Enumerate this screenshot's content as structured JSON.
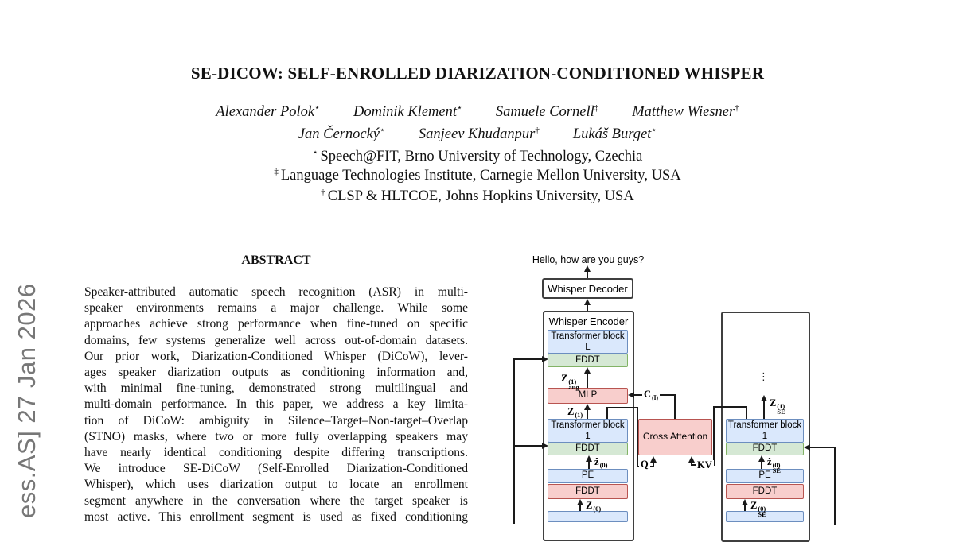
{
  "arxiv_banner": {
    "text": "ess.AS]  27 Jan 2026"
  },
  "header": {
    "title": "SE-DICOW: SELF-ENROLLED DIARIZATION-CONDITIONED WHISPER",
    "author_line1": [
      {
        "name": "Alexander Polok",
        "mark": "⋆"
      },
      {
        "name": "Dominik Klement",
        "mark": "⋆"
      },
      {
        "name": "Samuele Cornell",
        "mark": "‡"
      },
      {
        "name": "Matthew Wiesner",
        "mark": "†"
      }
    ],
    "author_line2": [
      {
        "name": "Jan Černocký",
        "mark": "⋆"
      },
      {
        "name": "Sanjeev Khudanpur",
        "mark": "†"
      },
      {
        "name": "Lukáš Burget",
        "mark": "⋆"
      }
    ],
    "affiliations": [
      {
        "mark": "⋆",
        "text": "Speech@FIT, Brno University of Technology, Czechia"
      },
      {
        "mark": "‡",
        "text": "Language Technologies Institute, Carnegie Mellon University, USA"
      },
      {
        "mark": "†",
        "text": "CLSP & HLTCOE, Johns Hopkins University, USA"
      }
    ]
  },
  "abstract": {
    "heading": "ABSTRACT",
    "lines": [
      "Speaker-attributed automatic speech recognition (ASR) in multi-",
      "speaker environments remains a major challenge. While some",
      "approaches achieve strong performance when fine-tuned on specific",
      "domains, few systems generalize well across out-of-domain datasets.",
      "Our prior work, Diarization-Conditioned Whisper (DiCoW), lever-",
      "ages speaker diarization outputs as conditioning information and,",
      "with minimal fine-tuning, demonstrated strong multilingual and",
      "multi-domain performance. In this paper, we address a key limita-",
      "tion of DiCoW: ambiguity in Silence–Target–Non-target–Overlap",
      "(STNO) masks, where two or more fully overlapping speakers may",
      "have nearly identical conditioning despite differing transcriptions.",
      "We introduce SE-DiCoW (Self-Enrolled Diarization-Conditioned",
      "Whisper), which uses diarization output to locate an enrollment",
      "segment anywhere in the conversation where the target speaker is",
      "most active. This enrollment segment is used as fixed conditioning"
    ]
  },
  "figure": {
    "output_text": "Hello, how are you guys?",
    "decoder_label": "Whisper Decoder",
    "encoder_label": "Whisper Encoder",
    "boxes": {
      "transformer_block": "Transformer block",
      "block_L": "L",
      "block_1": "1",
      "fddt": "FDDT",
      "mlp": "MLP",
      "pe": "PE",
      "cross_attention": "Cross Attention"
    },
    "labels": {
      "z_aug_1": {
        "base": "Z",
        "sub": "aug",
        "sup": "(1)"
      },
      "c_l": {
        "base": "C",
        "sup": "(l)"
      },
      "z_1": {
        "base": "Z",
        "sup": "(1)"
      },
      "z_hat_0": {
        "base": "ẑ",
        "sup": "(0)"
      },
      "z_0": {
        "base": "Z",
        "sup": "(0)"
      },
      "z_se_1": {
        "base": "Z",
        "sub": "SE",
        "sup": "(1)"
      },
      "z_hat_se_0": {
        "base": "ẑ",
        "sub": "SE",
        "sup": "(0)"
      },
      "z_se_0": {
        "base": "Z",
        "sub": "SE",
        "sup": "(0)"
      },
      "q": "Q",
      "kv": "KV",
      "dots": "⋮"
    },
    "colors": {
      "blue_fill": "#dae8fc",
      "blue_border": "#6c8ebf",
      "green_fill": "#d5e8d4",
      "green_border": "#82b366",
      "red_fill": "#f8cecc",
      "red_border": "#b85450",
      "outline": "#3f3f3f",
      "line": "#1a1a1a",
      "banner_gray": "#777777"
    }
  }
}
